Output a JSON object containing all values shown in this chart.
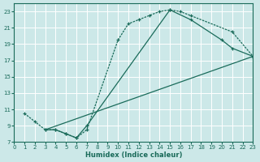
{
  "xlabel": "Humidex (Indice chaleur)",
  "bg_color": "#cce8e8",
  "grid_color": "#ffffff",
  "line_color": "#1a6b5a",
  "xlim": [
    0,
    23
  ],
  "ylim": [
    7,
    24
  ],
  "yticks": [
    7,
    9,
    11,
    13,
    15,
    17,
    19,
    21,
    23
  ],
  "xticks": [
    0,
    1,
    2,
    3,
    4,
    5,
    6,
    7,
    8,
    9,
    10,
    11,
    12,
    13,
    14,
    15,
    16,
    17,
    18,
    19,
    20,
    21,
    22,
    23
  ],
  "curve1_x": [
    1,
    2,
    3,
    4,
    5,
    6,
    7,
    10,
    11,
    12,
    13,
    14,
    15,
    16,
    17,
    21,
    23
  ],
  "curve1_y": [
    10.5,
    9.5,
    8.5,
    8.5,
    8.0,
    7.5,
    8.5,
    19.5,
    21.5,
    22.0,
    22.5,
    23.0,
    23.2,
    23.0,
    22.5,
    20.5,
    17.5
  ],
  "curve2_x": [
    3,
    4,
    5,
    6,
    7,
    15,
    17,
    20,
    21,
    23
  ],
  "curve2_y": [
    8.5,
    8.5,
    8.0,
    7.5,
    9.0,
    23.2,
    22.0,
    19.5,
    18.5,
    17.5
  ],
  "curve3_x": [
    3,
    23
  ],
  "curve3_y": [
    8.5,
    17.5
  ],
  "marker_style": "+",
  "marker_size": 3.5,
  "linewidth": 0.9
}
